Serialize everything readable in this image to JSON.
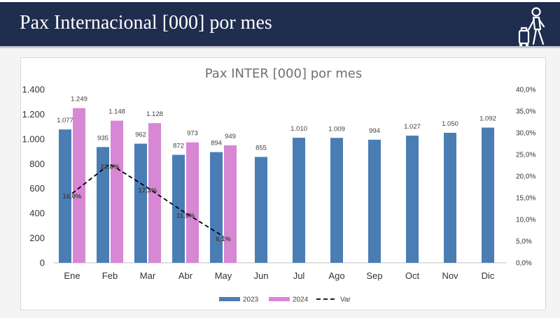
{
  "header": {
    "title": "Pax Internacional [000] por mes",
    "icon": "traveler-with-suitcase-icon",
    "background": "#1f2d4f"
  },
  "chart_data": {
    "type": "bar",
    "title": "Pax INTER [000]  por mes",
    "categories": [
      "Ene",
      "Feb",
      "Mar",
      "Abr",
      "May",
      "Jun",
      "Jul",
      "Ago",
      "Sep",
      "Oct",
      "Nov",
      "Dic"
    ],
    "series": [
      {
        "name": "2023",
        "type": "bar",
        "axis": "left",
        "color": "#4a7db4",
        "values": [
          1077,
          935,
          962,
          872,
          894,
          855,
          1010,
          1009,
          994,
          1027,
          1050,
          1092
        ],
        "labels": [
          "1.077",
          "935",
          "962",
          "872",
          "894",
          "855",
          "1.010",
          "1.009",
          "994",
          "1.027",
          "1.050",
          "1.092"
        ]
      },
      {
        "name": "2024",
        "type": "bar",
        "axis": "left",
        "color": "#d787d4",
        "values": [
          1249,
          1148,
          1128,
          973,
          949,
          null,
          null,
          null,
          null,
          null,
          null,
          null
        ],
        "labels": [
          "1.249",
          "1.148",
          "1.128",
          "973",
          "949",
          "",
          "",
          "",
          "",
          "",
          "",
          ""
        ]
      },
      {
        "name": "Var",
        "type": "line",
        "axis": "right",
        "color": "#000000",
        "dash": "dashed",
        "values": [
          16.0,
          22.8,
          17.3,
          11.5,
          6.1,
          null,
          null,
          null,
          null,
          null,
          null,
          null
        ],
        "labels": [
          "16,0%",
          "22,8%",
          "17,3%",
          "11,5%",
          "6,1%",
          "",
          "",
          "",
          "",
          "",
          "",
          ""
        ]
      }
    ],
    "y_left": {
      "range": [
        0,
        1400
      ],
      "ticks": [
        0,
        200,
        400,
        600,
        800,
        1000,
        1200,
        1400
      ],
      "tick_labels": [
        "0",
        "200",
        "400",
        "600",
        "800",
        "1.000",
        "1.200",
        "1.400"
      ]
    },
    "y_right": {
      "range": [
        0,
        40
      ],
      "ticks": [
        0,
        5,
        10,
        15,
        20,
        25,
        30,
        35,
        40
      ],
      "tick_labels": [
        "0,0%",
        "5,0%",
        "10,0%",
        "15,0%",
        "20,0%",
        "25,0%",
        "30,0%",
        "35,0%",
        "40,0%"
      ]
    },
    "grid": false,
    "legend": "bottom",
    "legend_entries": [
      "2023",
      "2024",
      "Var"
    ]
  }
}
